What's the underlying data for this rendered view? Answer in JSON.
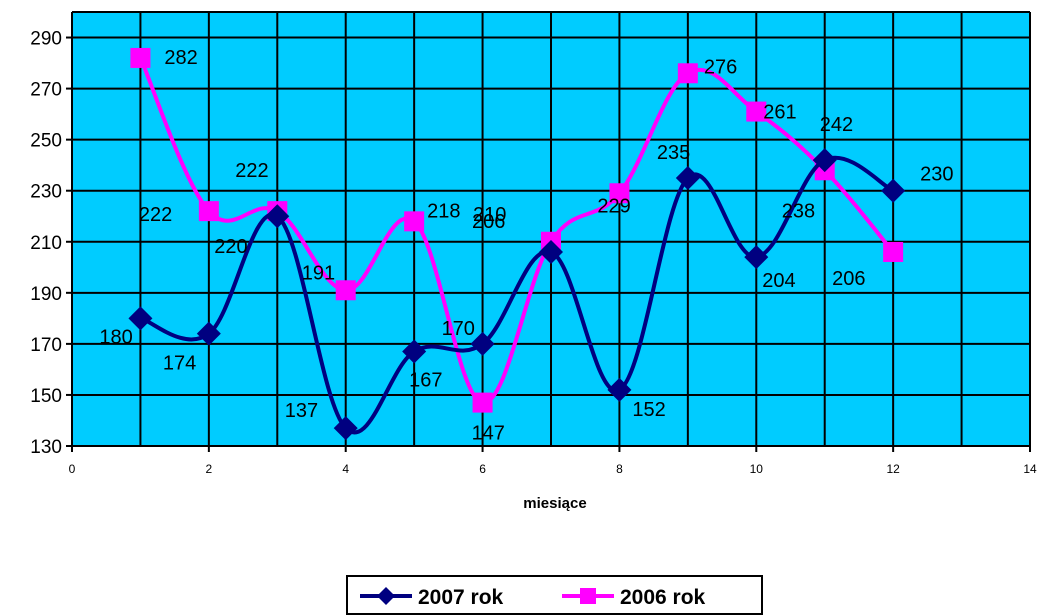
{
  "chart_data": {
    "type": "line",
    "xlabel": "miesiące",
    "ylabel": "",
    "xlim": [
      0,
      14
    ],
    "ylim": [
      130,
      300
    ],
    "x_ticks": [
      0,
      2,
      4,
      6,
      8,
      10,
      12,
      14
    ],
    "y_ticks": [
      130,
      150,
      170,
      190,
      210,
      230,
      250,
      270,
      290
    ],
    "grid": true,
    "plot_background": "#00CCFF",
    "legend_position": "bottom",
    "smooth": true,
    "series": [
      {
        "name": "2007 rok",
        "color": "#000080",
        "marker": "diamond",
        "x": [
          1,
          2,
          3,
          4,
          5,
          6,
          7,
          8,
          9,
          10,
          11,
          12
        ],
        "values": [
          180,
          174,
          220,
          137,
          167,
          170,
          206,
          152,
          235,
          204,
          242,
          230
        ],
        "data_labels": [
          "180",
          "174",
          "220",
          "137",
          "167",
          "170",
          "206",
          "152",
          "235",
          "204",
          "242",
          "230"
        ]
      },
      {
        "name": "2006 rok",
        "color": "#FF00FF",
        "marker": "square",
        "x": [
          1,
          2,
          3,
          4,
          5,
          6,
          7,
          8,
          9,
          10,
          11,
          12
        ],
        "values": [
          282,
          222,
          222,
          191,
          218,
          147,
          210,
          229,
          276,
          261,
          238,
          206
        ],
        "data_labels": [
          "282",
          "222",
          "222",
          "191",
          "218",
          "147",
          "210",
          "229",
          "276",
          "261",
          "238",
          "206"
        ]
      }
    ]
  }
}
